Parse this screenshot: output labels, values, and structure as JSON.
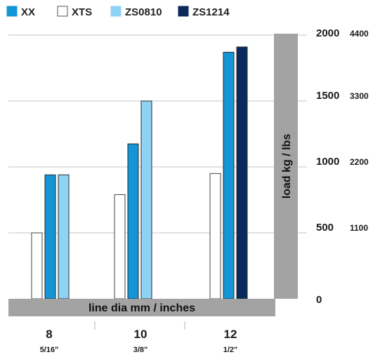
{
  "chart_data": {
    "type": "bar",
    "categories": [
      "8",
      "10",
      "12"
    ],
    "category_sublabels": [
      "5/16\"",
      "3/8\"",
      "1/2\""
    ],
    "series": [
      {
        "name": "XTS",
        "color": "#ffffff",
        "values": [
          500,
          790,
          950
        ]
      },
      {
        "name": "XX",
        "color": "#1495d6",
        "values": [
          940,
          1175,
          1870
        ]
      },
      {
        "name": "ZS0810",
        "color": "#8fd3f4",
        "values": [
          940,
          1500,
          null
        ]
      },
      {
        "name": "ZS1214",
        "color": "#0b2a5c",
        "values": [
          null,
          null,
          1910
        ]
      }
    ],
    "legend": [
      {
        "name": "XX",
        "color": "#1495d6"
      },
      {
        "name": "XTS",
        "color": "#ffffff"
      },
      {
        "name": "ZS0810",
        "color": "#8fd3f4"
      },
      {
        "name": "ZS1214",
        "color": "#0b2a5c"
      }
    ],
    "xlabel": "line dia mm / inches",
    "ylabel": "load kg / lbs",
    "ylim": [
      0,
      2000
    ],
    "yticks": [
      {
        "kg": "2000",
        "lbs": "4400",
        "value": 2000
      },
      {
        "kg": "1500",
        "lbs": "3300",
        "value": 1500
      },
      {
        "kg": "1000",
        "lbs": "2200",
        "value": 1000
      },
      {
        "kg": "500",
        "lbs": "1100",
        "value": 500
      },
      {
        "kg": "0",
        "lbs": "",
        "value": 0
      }
    ],
    "grid": true,
    "legend_position": "top-left"
  }
}
